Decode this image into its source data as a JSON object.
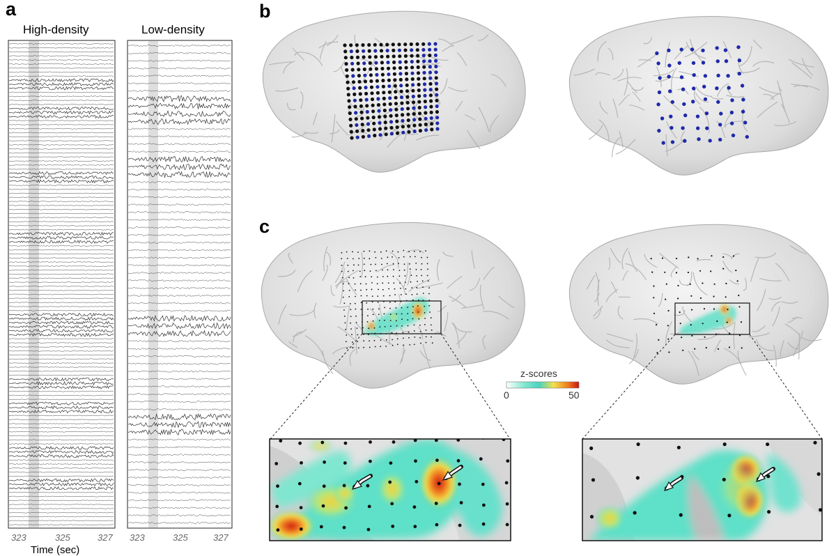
{
  "panels": {
    "a": {
      "label": "a",
      "left_title": "High-density",
      "right_title": "Low-density",
      "left_ticks": [
        "323",
        "325",
        "327"
      ],
      "right_ticks": [
        "323",
        "325",
        "327"
      ],
      "xlabel": "Time (sec)"
    },
    "b": {
      "label": "b"
    },
    "c": {
      "label": "c"
    }
  },
  "colorbar": {
    "title": "z-scores",
    "min": "0",
    "max": "50",
    "colors": [
      "#ffffff",
      "#7fe8cf",
      "#4ad3c0",
      "#f2e24a",
      "#f07a1e",
      "#c81414"
    ]
  },
  "colors": {
    "brain": "#e3e3e3",
    "electrode_black": "#111111",
    "electrode_blue": "#1f2aa8",
    "highlight_band": "#cfcfcf"
  }
}
